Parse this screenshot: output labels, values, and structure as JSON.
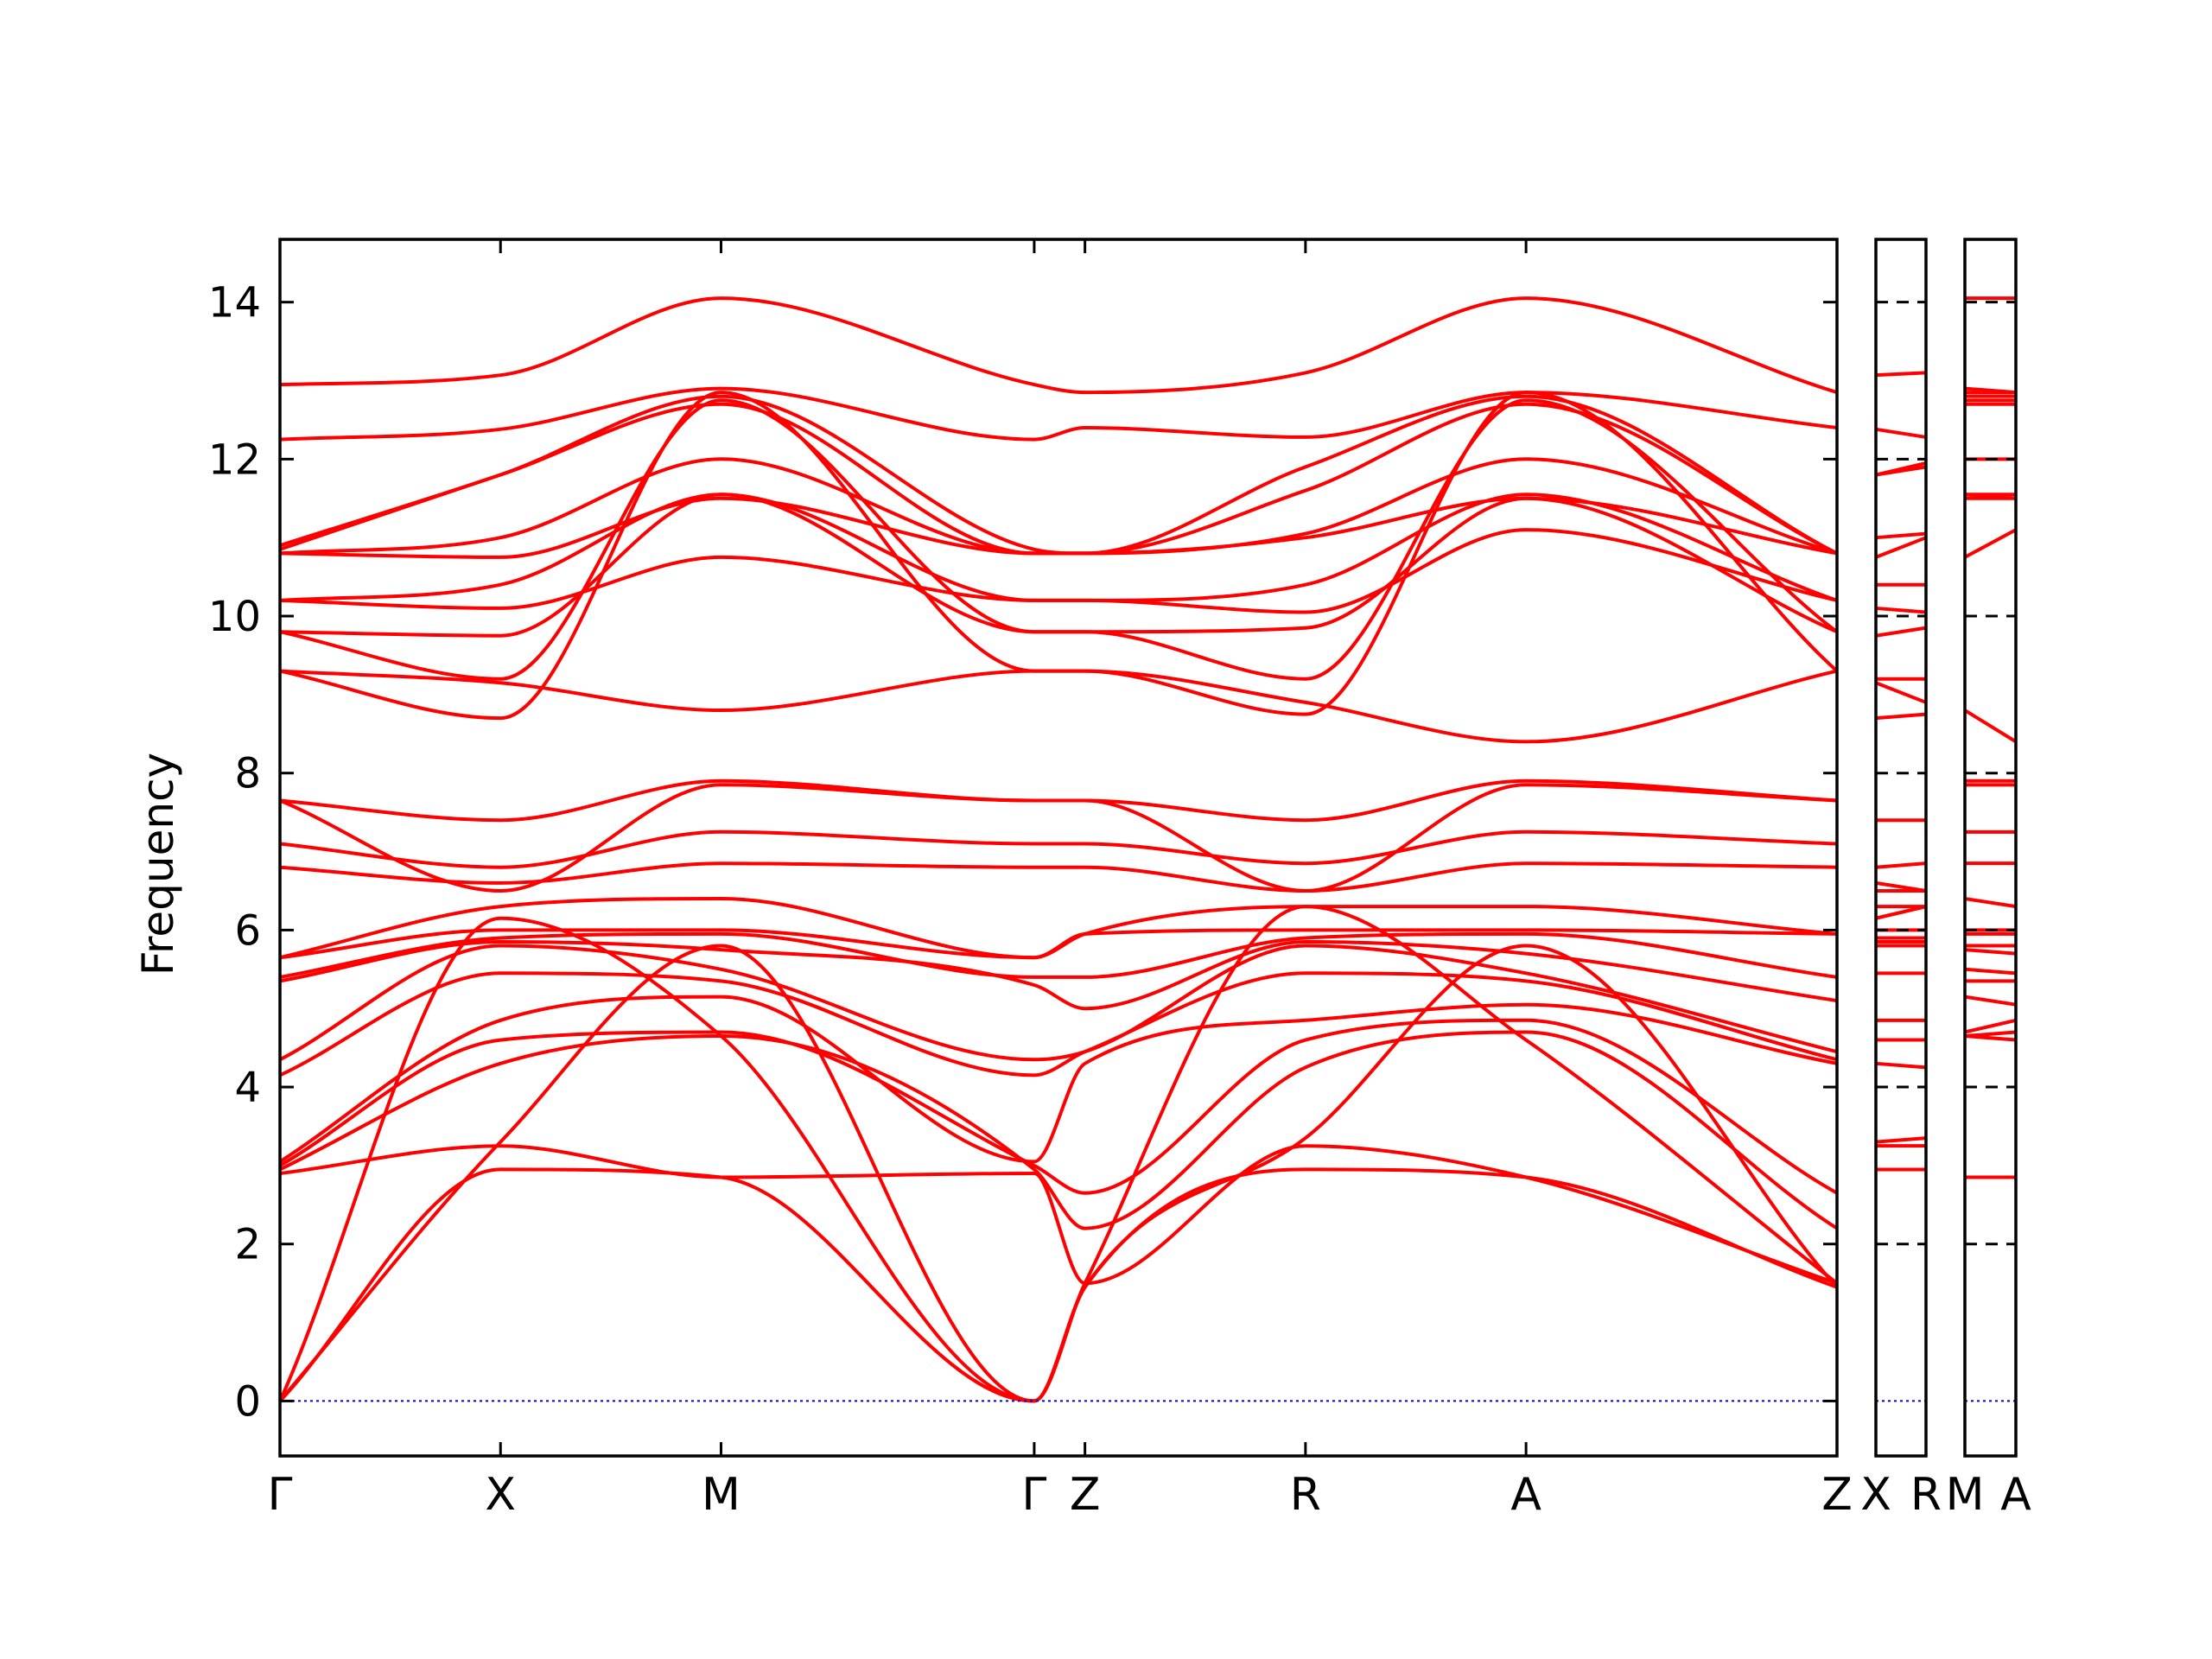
{
  "chart_data": {
    "type": "line",
    "ylabel": "Frequency",
    "ylim": [
      -0.7,
      14.8
    ],
    "yticks": [
      0,
      2,
      4,
      6,
      8,
      10,
      12,
      14
    ],
    "ytick_labels": [
      "0",
      "2",
      "4",
      "6",
      "8",
      "10",
      "12",
      "14"
    ],
    "grid": false,
    "colors": {
      "bands": "#ff0000",
      "zero_line": "#0000cc",
      "axes": "#000000"
    },
    "panels": [
      {
        "x_range": [
          0,
          7.06
        ],
        "labels": [
          {
            "x": 0,
            "text": "Γ"
          },
          {
            "x": 1.0,
            "text": "X"
          },
          {
            "x": 2.0,
            "text": "M"
          },
          {
            "x": 3.42,
            "text": "Γ"
          },
          {
            "x": 3.65,
            "text": "Z"
          },
          {
            "x": 4.65,
            "text": "R"
          },
          {
            "x": 5.65,
            "text": "A"
          },
          {
            "x": 7.06,
            "text": "Z"
          }
        ]
      },
      {
        "x_range": [
          0,
          1
        ],
        "labels": [
          {
            "x": 0,
            "text": "X"
          },
          {
            "x": 1,
            "text": "R"
          }
        ]
      },
      {
        "x_range": [
          0,
          1
        ],
        "labels": [
          {
            "x": 0,
            "text": "M"
          },
          {
            "x": 1,
            "text": "A"
          }
        ]
      }
    ],
    "main_bands": [
      {
        "x": [
          0,
          1.0,
          2.0,
          3.42,
          3.65,
          4.65,
          5.65,
          7.06
        ],
        "y": [
          12.95,
          13.07,
          14.05,
          12.95,
          12.85,
          13.1,
          14.05,
          12.85
        ]
      },
      {
        "x": [
          0,
          1.0,
          2.0,
          3.42,
          3.65,
          4.65,
          5.65,
          7.06
        ],
        "y": [
          12.25,
          12.38,
          12.9,
          12.25,
          12.4,
          12.28,
          12.85,
          12.4
        ]
      },
      {
        "x": [
          0,
          1.0,
          2.0,
          3.42,
          3.65,
          4.65,
          5.65,
          7.06
        ],
        "y": [
          10.9,
          11.8,
          12.8,
          10.85,
          10.8,
          11.9,
          12.8,
          10.8
        ]
      },
      {
        "x": [
          0,
          1.0,
          2.0,
          3.42,
          3.65,
          4.65,
          5.65,
          7.06
        ],
        "y": [
          10.85,
          11.8,
          12.7,
          10.8,
          10.8,
          11.6,
          12.7,
          10.8
        ]
      },
      {
        "x": [
          0,
          1.0,
          2.0,
          3.42,
          3.65,
          4.65,
          5.65,
          7.06
        ],
        "y": [
          10.8,
          11.0,
          12.0,
          10.8,
          10.8,
          11.05,
          12.0,
          10.8
        ]
      },
      {
        "x": [
          0,
          1.0,
          2.0,
          3.42,
          3.65,
          4.65,
          5.65,
          7.06
        ],
        "y": [
          10.8,
          10.75,
          11.5,
          10.8,
          10.8,
          11.0,
          11.5,
          10.8
        ]
      },
      {
        "x": [
          0,
          1.0,
          2.0,
          3.42,
          3.65,
          4.65,
          5.65,
          7.06
        ],
        "y": [
          10.2,
          10.4,
          11.55,
          10.2,
          10.2,
          10.4,
          11.55,
          10.2
        ]
      },
      {
        "x": [
          0,
          1.0,
          2.0,
          3.42,
          3.65,
          4.65,
          5.65,
          7.06
        ],
        "y": [
          10.2,
          10.1,
          10.75,
          10.2,
          10.2,
          10.05,
          11.1,
          10.2
        ]
      },
      {
        "x": [
          0,
          1.0,
          2.0,
          3.42,
          3.65,
          4.65,
          5.65,
          7.06
        ],
        "y": [
          9.8,
          9.75,
          11.55,
          9.8,
          9.8,
          9.85,
          11.5,
          9.8
        ]
      },
      {
        "x": [
          0,
          1.0,
          2.0,
          3.42,
          3.65,
          4.65,
          5.65,
          7.06
        ],
        "y": [
          9.8,
          9.2,
          12.75,
          9.8,
          9.8,
          9.2,
          12.75,
          9.8
        ]
      },
      {
        "x": [
          0,
          1.0,
          2.0,
          3.42,
          3.65,
          4.65,
          5.65,
          7.06
        ],
        "y": [
          9.3,
          8.7,
          12.85,
          9.3,
          9.3,
          8.75,
          12.85,
          9.3
        ]
      },
      {
        "x": [
          0,
          1.0,
          2.0,
          3.42,
          3.65,
          4.65,
          5.65,
          7.06
        ],
        "y": [
          9.3,
          9.15,
          8.8,
          9.3,
          9.3,
          8.9,
          8.4,
          9.3
        ]
      },
      {
        "x": [
          0,
          1.0,
          2.0,
          3.42,
          3.65,
          4.65,
          5.65,
          7.06
        ],
        "y": [
          7.65,
          7.4,
          7.9,
          7.65,
          7.65,
          7.4,
          7.9,
          7.65
        ]
      },
      {
        "x": [
          0,
          1.0,
          2.0,
          3.42,
          3.65,
          4.65,
          5.65,
          7.06
        ],
        "y": [
          7.65,
          6.5,
          7.85,
          7.65,
          7.65,
          6.5,
          7.85,
          7.65
        ]
      },
      {
        "x": [
          0,
          1.0,
          2.0,
          3.42,
          3.65,
          4.65,
          5.65,
          7.06
        ],
        "y": [
          7.1,
          6.8,
          7.25,
          7.1,
          7.1,
          6.85,
          7.25,
          7.1
        ]
      },
      {
        "x": [
          0,
          1.0,
          2.0,
          3.42,
          3.65,
          4.65,
          5.65,
          7.06
        ],
        "y": [
          6.8,
          6.6,
          6.85,
          6.8,
          6.8,
          6.5,
          6.85,
          6.8
        ]
      },
      {
        "x": [
          0,
          1.0,
          2.0,
          3.42,
          3.65,
          4.65,
          5.65,
          7.06
        ],
        "y": [
          5.65,
          6.3,
          6.4,
          5.65,
          5.95,
          6.3,
          6.3,
          5.95
        ]
      },
      {
        "x": [
          0,
          1.0,
          2.0,
          3.42,
          3.65,
          4.65,
          5.65,
          7.06
        ],
        "y": [
          5.65,
          6.0,
          6.0,
          5.65,
          5.95,
          6.0,
          6.0,
          5.95
        ]
      },
      {
        "x": [
          0,
          1.0,
          2.0,
          3.42,
          3.65,
          4.65,
          5.65,
          7.06
        ],
        "y": [
          5.4,
          5.9,
          5.95,
          5.4,
          5.4,
          5.9,
          5.95,
          5.4
        ]
      },
      {
        "x": [
          0,
          1.0,
          2.0,
          3.42,
          3.65,
          4.65,
          5.65,
          7.06
        ],
        "y": [
          5.35,
          5.85,
          5.75,
          5.3,
          5.0,
          5.85,
          5.7,
          5.1
        ]
      },
      {
        "x": [
          0,
          1.0,
          2.0,
          3.42,
          3.65,
          4.65,
          5.65,
          7.06
        ],
        "y": [
          4.35,
          5.8,
          5.5,
          4.35,
          4.45,
          5.8,
          5.45,
          4.45
        ]
      },
      {
        "x": [
          0,
          1.0,
          2.0,
          3.42,
          3.65,
          4.65,
          5.65,
          7.06
        ],
        "y": [
          4.15,
          5.45,
          5.35,
          4.15,
          4.45,
          5.45,
          5.35,
          4.35
        ]
      },
      {
        "x": [
          0,
          1.0,
          2.0,
          3.42,
          3.65,
          4.65,
          5.65,
          7.06
        ],
        "y": [
          3.05,
          4.85,
          5.15,
          3.05,
          4.3,
          4.85,
          5.05,
          4.3
        ]
      },
      {
        "x": [
          0,
          1.0,
          2.0,
          3.42,
          3.65,
          4.65,
          5.65,
          7.06
        ],
        "y": [
          3.0,
          4.6,
          4.7,
          3.0,
          2.65,
          4.6,
          4.85,
          2.65
        ]
      },
      {
        "x": [
          0,
          1.0,
          2.0,
          3.42,
          3.65,
          4.65,
          5.65,
          7.06
        ],
        "y": [
          2.95,
          4.3,
          4.65,
          2.95,
          2.2,
          4.25,
          4.7,
          2.2
        ]
      },
      {
        "x": [
          0,
          1.0,
          2.0,
          3.42,
          3.65,
          4.65,
          5.65,
          7.06
        ],
        "y": [
          2.9,
          3.25,
          2.85,
          2.9,
          1.5,
          3.25,
          2.85,
          1.5
        ]
      },
      {
        "x": [
          0,
          1.0,
          2.0,
          3.42,
          3.65,
          4.65,
          5.65,
          7.06
        ],
        "y": [
          0,
          2.95,
          2.85,
          0,
          1.45,
          2.95,
          2.85,
          1.45
        ]
      },
      {
        "x": [
          0,
          1.0,
          2.0,
          3.42,
          3.65,
          4.65,
          5.65,
          7.06
        ],
        "y": [
          0,
          3.3,
          5.8,
          0,
          1.45,
          3.35,
          5.8,
          1.45
        ]
      },
      {
        "x": [
          0,
          1.0,
          2.0,
          3.42,
          3.65,
          4.65,
          5.65,
          7.06
        ],
        "y": [
          0,
          6.15,
          4.65,
          0,
          1.5,
          6.3,
          4.6,
          1.5
        ]
      }
    ],
    "xr_bands": [
      [
        13.07,
        13.1
      ],
      [
        12.38,
        12.28
      ],
      [
        11.8,
        11.9
      ],
      [
        11.8,
        11.95
      ],
      [
        11.0,
        11.05
      ],
      [
        10.75,
        11.0
      ],
      [
        10.4,
        10.4
      ],
      [
        10.1,
        10.05
      ],
      [
        9.75,
        9.85
      ],
      [
        9.2,
        9.2
      ],
      [
        8.7,
        8.75
      ],
      [
        9.15,
        8.9
      ],
      [
        7.4,
        7.4
      ],
      [
        6.5,
        6.5
      ],
      [
        6.8,
        6.85
      ],
      [
        6.6,
        6.5
      ],
      [
        6.3,
        6.3
      ],
      [
        6.0,
        6.0
      ],
      [
        5.9,
        5.9
      ],
      [
        5.85,
        5.85
      ],
      [
        5.8,
        5.8
      ],
      [
        5.45,
        5.45
      ],
      [
        4.85,
        4.85
      ],
      [
        4.6,
        4.6
      ],
      [
        4.3,
        4.25
      ],
      [
        3.25,
        3.25
      ],
      [
        2.95,
        2.95
      ],
      [
        3.3,
        3.35
      ],
      [
        6.15,
        6.3
      ]
    ],
    "ma_bands": [
      [
        14.05,
        14.05
      ],
      [
        12.9,
        12.85
      ],
      [
        12.8,
        12.8
      ],
      [
        12.7,
        12.7
      ],
      [
        12.0,
        12.0
      ],
      [
        11.5,
        11.5
      ],
      [
        11.55,
        11.55
      ],
      [
        10.75,
        11.1
      ],
      [
        11.55,
        11.5
      ],
      [
        12.75,
        12.75
      ],
      [
        12.85,
        12.85
      ],
      [
        8.8,
        8.4
      ],
      [
        7.9,
        7.9
      ],
      [
        7.85,
        7.85
      ],
      [
        7.25,
        7.25
      ],
      [
        6.85,
        6.85
      ],
      [
        6.4,
        6.3
      ],
      [
        6.0,
        6.0
      ],
      [
        5.95,
        5.95
      ],
      [
        5.75,
        5.7
      ],
      [
        5.5,
        5.45
      ],
      [
        5.35,
        5.35
      ],
      [
        5.15,
        5.05
      ],
      [
        4.7,
        4.85
      ],
      [
        4.65,
        4.7
      ],
      [
        2.85,
        2.85
      ],
      [
        2.85,
        2.85
      ],
      [
        5.8,
        5.8
      ],
      [
        4.65,
        4.6
      ]
    ]
  }
}
